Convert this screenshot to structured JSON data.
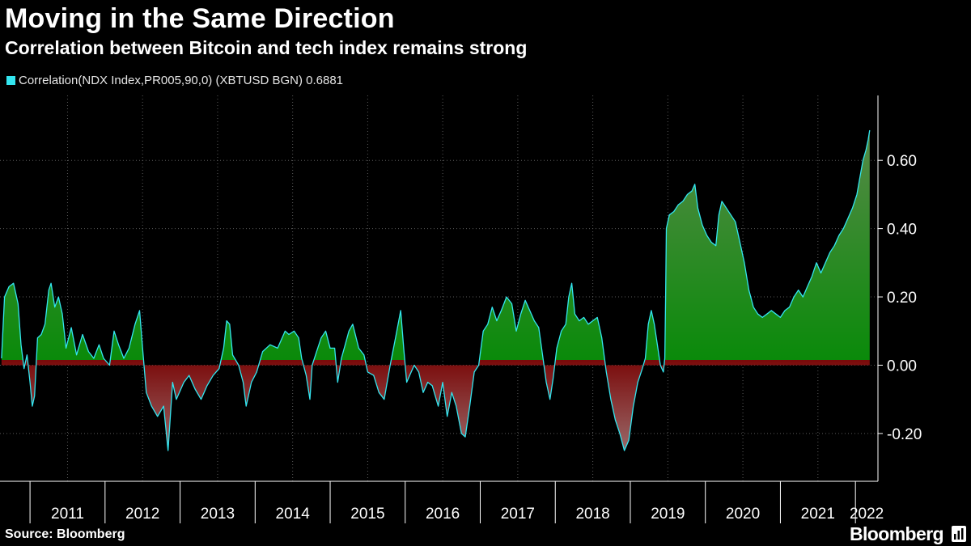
{
  "header": {
    "title": "Moving in the Same Direction",
    "subtitle": "Correlation between Bitcoin and tech index remains strong"
  },
  "legend": {
    "label": "Correlation(NDX Index,PR005,90,0) (XBTUSD BGN) 0.6881",
    "swatch_color": "#33e6f0"
  },
  "footer": {
    "source": "Source: Bloomberg",
    "brand": "Bloomberg"
  },
  "chart_data": {
    "type": "area",
    "title": "Moving in the Same Direction",
    "subtitle": "Correlation between Bitcoin and tech index remains strong",
    "xlabel": "",
    "ylabel": "",
    "ylim": [
      -0.34,
      0.79
    ],
    "xlim": [
      2010.6,
      2022.3
    ],
    "y_ticks": [
      0.6,
      0.4,
      0.2,
      0.0,
      -0.2
    ],
    "y_tick_labels": [
      "0.60",
      "0.40",
      "0.20",
      "0.00",
      "-0.20"
    ],
    "x_tick_labels": [
      "2011",
      "2012",
      "2013",
      "2014",
      "2015",
      "2016",
      "2017",
      "2018",
      "2019",
      "2020",
      "2021",
      "2022"
    ],
    "year_boundaries": [
      2011,
      2012,
      2013,
      2014,
      2015,
      2016,
      2017,
      2018,
      2019,
      2020,
      2021,
      2022
    ],
    "grid": true,
    "legend_position": "top-left",
    "colors": {
      "line": "#33e6f0",
      "positive_fill": "#0a8a0a",
      "negative_fill": "#8a0f0f"
    },
    "series": [
      {
        "name": "Correlation(NDX Index,PR005,90,0) (XBTUSD BGN)",
        "last_value": 0.6881,
        "points": [
          [
            2010.62,
            0.02
          ],
          [
            2010.66,
            0.2
          ],
          [
            2010.72,
            0.23
          ],
          [
            2010.78,
            0.24
          ],
          [
            2010.84,
            0.18
          ],
          [
            2010.88,
            0.06
          ],
          [
            2010.92,
            -0.01
          ],
          [
            2010.96,
            0.03
          ],
          [
            2011.0,
            -0.05
          ],
          [
            2011.03,
            -0.12
          ],
          [
            2011.06,
            -0.09
          ],
          [
            2011.1,
            0.08
          ],
          [
            2011.15,
            0.09
          ],
          [
            2011.2,
            0.12
          ],
          [
            2011.25,
            0.22
          ],
          [
            2011.28,
            0.24
          ],
          [
            2011.33,
            0.17
          ],
          [
            2011.38,
            0.2
          ],
          [
            2011.43,
            0.15
          ],
          [
            2011.48,
            0.05
          ],
          [
            2011.55,
            0.11
          ],
          [
            2011.62,
            0.03
          ],
          [
            2011.7,
            0.09
          ],
          [
            2011.78,
            0.04
          ],
          [
            2011.85,
            0.02
          ],
          [
            2011.92,
            0.06
          ],
          [
            2011.98,
            0.02
          ],
          [
            2012.06,
            0.0
          ],
          [
            2012.12,
            0.1
          ],
          [
            2012.18,
            0.06
          ],
          [
            2012.25,
            0.02
          ],
          [
            2012.32,
            0.05
          ],
          [
            2012.4,
            0.12
          ],
          [
            2012.46,
            0.16
          ],
          [
            2012.5,
            0.05
          ],
          [
            2012.55,
            -0.08
          ],
          [
            2012.62,
            -0.12
          ],
          [
            2012.7,
            -0.15
          ],
          [
            2012.78,
            -0.12
          ],
          [
            2012.84,
            -0.25
          ],
          [
            2012.9,
            -0.05
          ],
          [
            2012.95,
            -0.1
          ],
          [
            2013.05,
            -0.05
          ],
          [
            2013.12,
            -0.03
          ],
          [
            2013.2,
            -0.07
          ],
          [
            2013.28,
            -0.1
          ],
          [
            2013.36,
            -0.06
          ],
          [
            2013.44,
            -0.03
          ],
          [
            2013.52,
            -0.01
          ],
          [
            2013.58,
            0.05
          ],
          [
            2013.62,
            0.13
          ],
          [
            2013.66,
            0.12
          ],
          [
            2013.7,
            0.03
          ],
          [
            2013.78,
            0.0
          ],
          [
            2013.84,
            -0.05
          ],
          [
            2013.88,
            -0.12
          ],
          [
            2013.95,
            -0.05
          ],
          [
            2014.02,
            -0.02
          ],
          [
            2014.1,
            0.04
          ],
          [
            2014.2,
            0.06
          ],
          [
            2014.3,
            0.05
          ],
          [
            2014.4,
            0.1
          ],
          [
            2014.45,
            0.09
          ],
          [
            2014.52,
            0.1
          ],
          [
            2014.58,
            0.08
          ],
          [
            2014.62,
            0.02
          ],
          [
            2014.68,
            -0.03
          ],
          [
            2014.73,
            -0.1
          ],
          [
            2014.76,
            0.0
          ],
          [
            2014.82,
            0.04
          ],
          [
            2014.88,
            0.08
          ],
          [
            2014.94,
            0.1
          ],
          [
            2015.0,
            0.05
          ],
          [
            2015.06,
            0.05
          ],
          [
            2015.1,
            -0.05
          ],
          [
            2015.15,
            0.02
          ],
          [
            2015.2,
            0.06
          ],
          [
            2015.25,
            0.1
          ],
          [
            2015.3,
            0.12
          ],
          [
            2015.38,
            0.05
          ],
          [
            2015.45,
            0.03
          ],
          [
            2015.5,
            -0.02
          ],
          [
            2015.58,
            -0.03
          ],
          [
            2015.65,
            -0.08
          ],
          [
            2015.72,
            -0.1
          ],
          [
            2015.8,
            0.0
          ],
          [
            2015.88,
            0.09
          ],
          [
            2015.94,
            0.16
          ],
          [
            2015.98,
            0.05
          ],
          [
            2016.02,
            -0.05
          ],
          [
            2016.06,
            -0.03
          ],
          [
            2016.12,
            0.0
          ],
          [
            2016.18,
            -0.02
          ],
          [
            2016.24,
            -0.08
          ],
          [
            2016.3,
            -0.05
          ],
          [
            2016.36,
            -0.06
          ],
          [
            2016.44,
            -0.12
          ],
          [
            2016.5,
            -0.05
          ],
          [
            2016.56,
            -0.15
          ],
          [
            2016.62,
            -0.08
          ],
          [
            2016.68,
            -0.12
          ],
          [
            2016.75,
            -0.2
          ],
          [
            2016.8,
            -0.21
          ],
          [
            2016.86,
            -0.12
          ],
          [
            2016.92,
            -0.02
          ],
          [
            2016.98,
            0.0
          ],
          [
            2017.04,
            0.1
          ],
          [
            2017.1,
            0.12
          ],
          [
            2017.16,
            0.17
          ],
          [
            2017.22,
            0.13
          ],
          [
            2017.28,
            0.16
          ],
          [
            2017.35,
            0.2
          ],
          [
            2017.42,
            0.18
          ],
          [
            2017.48,
            0.1
          ],
          [
            2017.54,
            0.15
          ],
          [
            2017.6,
            0.19
          ],
          [
            2017.66,
            0.16
          ],
          [
            2017.72,
            0.13
          ],
          [
            2017.78,
            0.11
          ],
          [
            2017.83,
            0.03
          ],
          [
            2017.88,
            -0.05
          ],
          [
            2017.93,
            -0.1
          ],
          [
            2017.97,
            -0.04
          ],
          [
            2018.02,
            0.05
          ],
          [
            2018.08,
            0.1
          ],
          [
            2018.14,
            0.12
          ],
          [
            2018.18,
            0.2
          ],
          [
            2018.22,
            0.24
          ],
          [
            2018.26,
            0.15
          ],
          [
            2018.32,
            0.13
          ],
          [
            2018.38,
            0.14
          ],
          [
            2018.44,
            0.12
          ],
          [
            2018.5,
            0.13
          ],
          [
            2018.56,
            0.14
          ],
          [
            2018.62,
            0.08
          ],
          [
            2018.68,
            -0.02
          ],
          [
            2018.74,
            -0.1
          ],
          [
            2018.8,
            -0.16
          ],
          [
            2018.86,
            -0.2
          ],
          [
            2018.92,
            -0.25
          ],
          [
            2018.98,
            -0.22
          ],
          [
            2019.04,
            -0.12
          ],
          [
            2019.1,
            -0.05
          ],
          [
            2019.16,
            -0.01
          ],
          [
            2019.2,
            0.02
          ],
          [
            2019.24,
            0.12
          ],
          [
            2019.28,
            0.16
          ],
          [
            2019.32,
            0.12
          ],
          [
            2019.36,
            0.06
          ],
          [
            2019.4,
            0.0
          ],
          [
            2019.44,
            -0.02
          ],
          [
            2019.46,
            0.02
          ],
          [
            2019.47,
            0.2
          ],
          [
            2019.48,
            0.4
          ],
          [
            2019.52,
            0.44
          ],
          [
            2019.58,
            0.45
          ],
          [
            2019.64,
            0.47
          ],
          [
            2019.7,
            0.48
          ],
          [
            2019.76,
            0.5
          ],
          [
            2019.82,
            0.51
          ],
          [
            2019.86,
            0.53
          ],
          [
            2019.9,
            0.46
          ],
          [
            2019.96,
            0.41
          ],
          [
            2020.02,
            0.38
          ],
          [
            2020.08,
            0.36
          ],
          [
            2020.14,
            0.35
          ],
          [
            2020.18,
            0.44
          ],
          [
            2020.22,
            0.48
          ],
          [
            2020.28,
            0.46
          ],
          [
            2020.34,
            0.44
          ],
          [
            2020.4,
            0.42
          ],
          [
            2020.46,
            0.36
          ],
          [
            2020.52,
            0.3
          ],
          [
            2020.58,
            0.22
          ],
          [
            2020.64,
            0.17
          ],
          [
            2020.7,
            0.15
          ],
          [
            2020.76,
            0.14
          ],
          [
            2020.82,
            0.15
          ],
          [
            2020.88,
            0.16
          ],
          [
            2020.94,
            0.15
          ],
          [
            2021.0,
            0.14
          ],
          [
            2021.06,
            0.16
          ],
          [
            2021.12,
            0.17
          ],
          [
            2021.18,
            0.2
          ],
          [
            2021.24,
            0.22
          ],
          [
            2021.3,
            0.2
          ],
          [
            2021.36,
            0.23
          ],
          [
            2021.42,
            0.26
          ],
          [
            2021.48,
            0.3
          ],
          [
            2021.54,
            0.27
          ],
          [
            2021.6,
            0.3
          ],
          [
            2021.66,
            0.33
          ],
          [
            2021.72,
            0.35
          ],
          [
            2021.78,
            0.38
          ],
          [
            2021.84,
            0.4
          ],
          [
            2021.9,
            0.43
          ],
          [
            2021.96,
            0.46
          ],
          [
            2022.02,
            0.5
          ],
          [
            2022.06,
            0.55
          ],
          [
            2022.1,
            0.6
          ],
          [
            2022.14,
            0.63
          ],
          [
            2022.17,
            0.66
          ],
          [
            2022.19,
            0.6881
          ]
        ]
      }
    ]
  }
}
